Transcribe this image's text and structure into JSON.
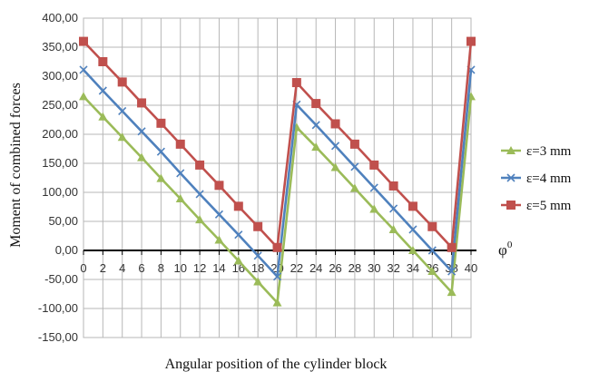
{
  "chart_data": {
    "type": "line",
    "xlabel": "Angular position of the cylinder block",
    "ylabel": "Moment of combined forces",
    "x_unit_label": "φ",
    "x_unit_sup": "0",
    "ylim": [
      -150,
      400
    ],
    "xlim": [
      0,
      40
    ],
    "yticks": [
      "400,00",
      "350,00",
      "300,00",
      "250,00",
      "200,00",
      "150,00",
      "100,00",
      "50,00",
      "0,00",
      "-50,00",
      "-100,00",
      "-150,00"
    ],
    "ytick_values": [
      400,
      350,
      300,
      250,
      200,
      150,
      100,
      50,
      0,
      -50,
      -100,
      -150
    ],
    "xticks": [
      "0",
      "2",
      "4",
      "6",
      "8",
      "10",
      "12",
      "14",
      "16",
      "18",
      "20",
      "22",
      "24",
      "26",
      "28",
      "30",
      "32",
      "34",
      "36",
      "38",
      "40"
    ],
    "xtick_values": [
      0,
      2,
      4,
      6,
      8,
      10,
      12,
      14,
      16,
      18,
      20,
      22,
      24,
      26,
      28,
      30,
      32,
      34,
      36,
      38,
      40
    ],
    "grid": true,
    "legend_position": "right",
    "x": [
      0,
      2,
      4,
      6,
      8,
      10,
      12,
      14,
      16,
      18,
      20,
      22,
      24,
      26,
      28,
      30,
      32,
      34,
      36,
      38,
      40
    ],
    "series": [
      {
        "name": "ε=3 mm",
        "color": "#9bbb59",
        "marker": "triangle",
        "values": [
          265,
          230,
          195,
          160,
          124,
          89,
          53,
          18,
          -18,
          -54,
          -90,
          212,
          178,
          143,
          107,
          71,
          36,
          0,
          -36,
          -72,
          265
        ]
      },
      {
        "name": "ε=4 mm",
        "color": "#4f81bd",
        "marker": "x",
        "values": [
          311,
          275,
          240,
          205,
          170,
          133,
          97,
          62,
          27,
          -9,
          -45,
          251,
          216,
          180,
          144,
          108,
          72,
          36,
          0,
          -36,
          311
        ]
      },
      {
        "name": "ε=5 mm",
        "color": "#c0504d",
        "marker": "square",
        "values": [
          360,
          325,
          290,
          254,
          219,
          183,
          147,
          112,
          76,
          41,
          5,
          289,
          253,
          218,
          183,
          147,
          111,
          76,
          41,
          5,
          360
        ]
      }
    ]
  }
}
